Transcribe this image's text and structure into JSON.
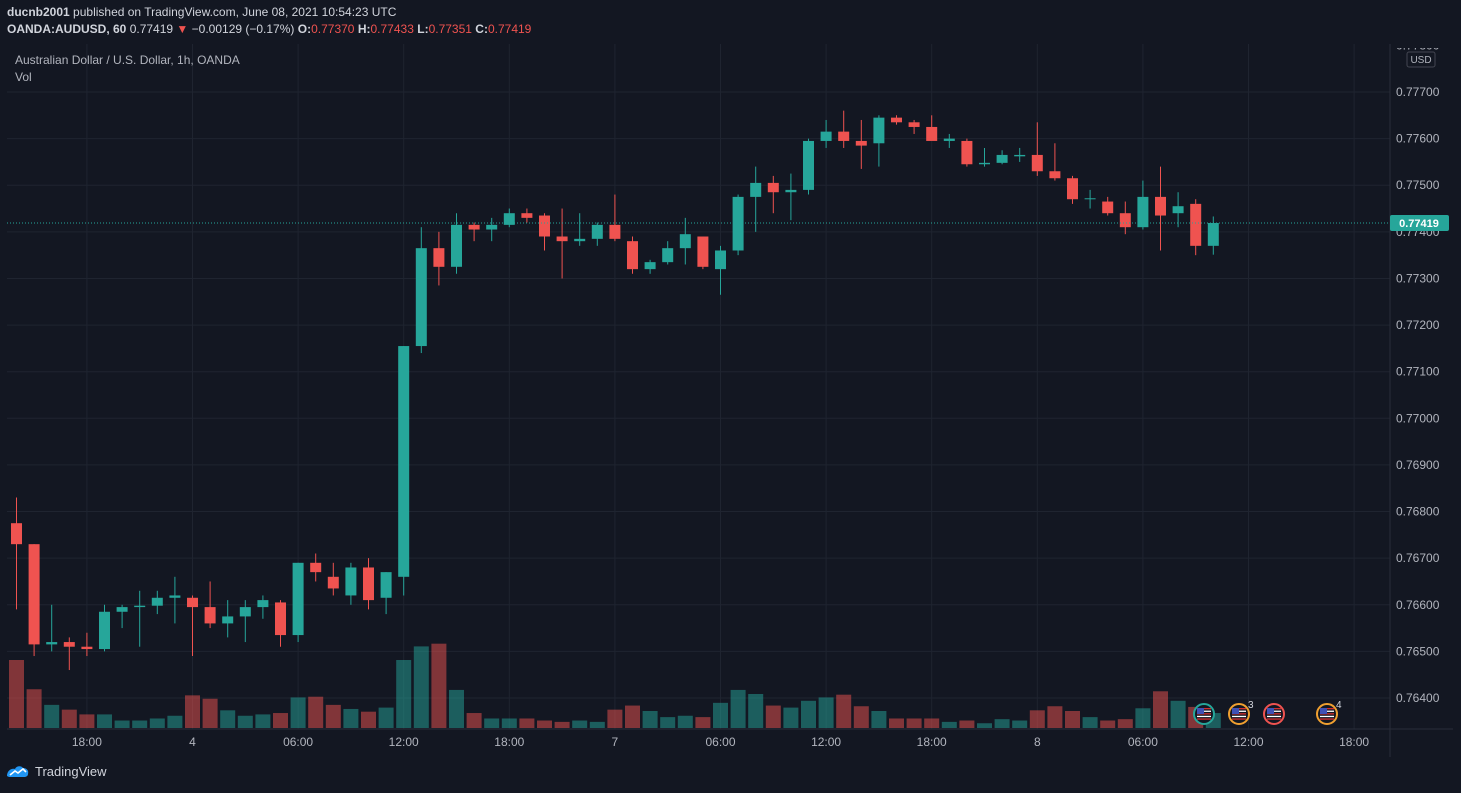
{
  "header": {
    "author": "ducnb2001",
    "published": "published on TradingView.com, June 08, 2021 10:54:23 UTC",
    "symbol": "OANDA:AUDUSD, 60",
    "last": "0.77419",
    "arrow": "▼",
    "change": "−0.00129 (−0.17%)",
    "o_label": "O:",
    "o_val": "0.77370",
    "h_label": "H:",
    "h_val": "0.77433",
    "l_label": "L:",
    "l_val": "0.77351",
    "c_label": "C:",
    "c_val": "0.77419"
  },
  "legend": {
    "title": "Australian Dollar / U.S. Dollar, 1h, OANDA",
    "vol": "Vol"
  },
  "price_axis": {
    "currency": "USD",
    "ticks": [
      "0.77700",
      "0.77600",
      "0.77500",
      "0.77400",
      "0.77300",
      "0.77200",
      "0.77100",
      "0.77000",
      "0.76900",
      "0.76800",
      "0.76700",
      "0.76600",
      "0.76500",
      "0.76400"
    ],
    "top_partial": "0.77800",
    "current_label": "0.77419"
  },
  "time_axis": {
    "ticks": [
      "18:00",
      "4",
      "06:00",
      "12:00",
      "18:00",
      "7",
      "06:00",
      "12:00",
      "18:00",
      "8",
      "06:00",
      "12:00",
      "18:00"
    ]
  },
  "events": [
    {
      "icon": "us-flag-icon",
      "count": ""
    },
    {
      "icon": "us-flag-icon",
      "count": "3"
    },
    {
      "icon": "us-flag-icon",
      "count": ""
    },
    {
      "icon": "us-flag-icon",
      "count": "4"
    }
  ],
  "colors": {
    "up": "#26a69a",
    "down": "#ef5350",
    "background": "#131722",
    "grid": "#1f2430",
    "text": "#b2b5be"
  },
  "footer": {
    "brand": "TradingView"
  },
  "chart_data": {
    "type": "candlestick",
    "symbol": "OANDA:AUDUSD",
    "interval": "1h",
    "ylim": [
      0.7632,
      0.7781
    ],
    "x_tick_labels": [
      "18:00",
      "4",
      "06:00",
      "12:00",
      "18:00",
      "7",
      "06:00",
      "12:00",
      "18:00",
      "8",
      "06:00",
      "12:00",
      "18:00"
    ],
    "last_close": 0.77419,
    "candles": [
      {
        "o": 0.76775,
        "h": 0.7683,
        "l": 0.7659,
        "c": 0.7673
      },
      {
        "o": 0.7673,
        "h": 0.7673,
        "l": 0.7649,
        "c": 0.76515
      },
      {
        "o": 0.76515,
        "h": 0.766,
        "l": 0.765,
        "c": 0.7652
      },
      {
        "o": 0.7652,
        "h": 0.7653,
        "l": 0.7646,
        "c": 0.7651
      },
      {
        "o": 0.7651,
        "h": 0.7654,
        "l": 0.7649,
        "c": 0.76505
      },
      {
        "o": 0.76505,
        "h": 0.766,
        "l": 0.765,
        "c": 0.76585
      },
      {
        "o": 0.76585,
        "h": 0.766,
        "l": 0.7655,
        "c": 0.76595
      },
      {
        "o": 0.76595,
        "h": 0.7663,
        "l": 0.7651,
        "c": 0.76598
      },
      {
        "o": 0.76598,
        "h": 0.7663,
        "l": 0.7658,
        "c": 0.76615
      },
      {
        "o": 0.76615,
        "h": 0.7666,
        "l": 0.7656,
        "c": 0.7662
      },
      {
        "o": 0.76615,
        "h": 0.7662,
        "l": 0.7649,
        "c": 0.76595
      },
      {
        "o": 0.76595,
        "h": 0.7665,
        "l": 0.7655,
        "c": 0.7656
      },
      {
        "o": 0.7656,
        "h": 0.7661,
        "l": 0.7653,
        "c": 0.76575
      },
      {
        "o": 0.76575,
        "h": 0.7661,
        "l": 0.7652,
        "c": 0.76595
      },
      {
        "o": 0.76595,
        "h": 0.7662,
        "l": 0.7657,
        "c": 0.7661
      },
      {
        "o": 0.76605,
        "h": 0.7661,
        "l": 0.7651,
        "c": 0.76535
      },
      {
        "o": 0.76535,
        "h": 0.7669,
        "l": 0.7652,
        "c": 0.7669
      },
      {
        "o": 0.7669,
        "h": 0.7671,
        "l": 0.7665,
        "c": 0.7667
      },
      {
        "o": 0.7666,
        "h": 0.7669,
        "l": 0.7662,
        "c": 0.76635
      },
      {
        "o": 0.7662,
        "h": 0.7669,
        "l": 0.766,
        "c": 0.7668
      },
      {
        "o": 0.7668,
        "h": 0.767,
        "l": 0.7659,
        "c": 0.7661
      },
      {
        "o": 0.76615,
        "h": 0.7667,
        "l": 0.7658,
        "c": 0.7667
      },
      {
        "o": 0.7666,
        "h": 0.77155,
        "l": 0.7662,
        "c": 0.77155
      },
      {
        "o": 0.77155,
        "h": 0.7741,
        "l": 0.7714,
        "c": 0.77365
      },
      {
        "o": 0.77365,
        "h": 0.774,
        "l": 0.77285,
        "c": 0.77325
      },
      {
        "o": 0.77325,
        "h": 0.7744,
        "l": 0.7731,
        "c": 0.77415
      },
      {
        "o": 0.77415,
        "h": 0.7742,
        "l": 0.7738,
        "c": 0.77405
      },
      {
        "o": 0.77405,
        "h": 0.7743,
        "l": 0.7738,
        "c": 0.77415
      },
      {
        "o": 0.77415,
        "h": 0.7745,
        "l": 0.7741,
        "c": 0.7744
      },
      {
        "o": 0.7744,
        "h": 0.7745,
        "l": 0.7742,
        "c": 0.7743
      },
      {
        "o": 0.77435,
        "h": 0.7744,
        "l": 0.7736,
        "c": 0.7739
      },
      {
        "o": 0.7739,
        "h": 0.7745,
        "l": 0.773,
        "c": 0.7738
      },
      {
        "o": 0.7738,
        "h": 0.7744,
        "l": 0.7737,
        "c": 0.77385
      },
      {
        "o": 0.77385,
        "h": 0.7742,
        "l": 0.7737,
        "c": 0.77415
      },
      {
        "o": 0.77415,
        "h": 0.7748,
        "l": 0.7738,
        "c": 0.77385
      },
      {
        "o": 0.7738,
        "h": 0.7739,
        "l": 0.7731,
        "c": 0.7732
      },
      {
        "o": 0.7732,
        "h": 0.7734,
        "l": 0.7731,
        "c": 0.77335
      },
      {
        "o": 0.77335,
        "h": 0.7738,
        "l": 0.7733,
        "c": 0.77365
      },
      {
        "o": 0.77365,
        "h": 0.7743,
        "l": 0.7733,
        "c": 0.77395
      },
      {
        "o": 0.7739,
        "h": 0.7739,
        "l": 0.7732,
        "c": 0.77325
      },
      {
        "o": 0.7732,
        "h": 0.7737,
        "l": 0.77265,
        "c": 0.7736
      },
      {
        "o": 0.7736,
        "h": 0.7748,
        "l": 0.7735,
        "c": 0.77475
      },
      {
        "o": 0.77475,
        "h": 0.7754,
        "l": 0.774,
        "c": 0.77505
      },
      {
        "o": 0.77505,
        "h": 0.7752,
        "l": 0.7744,
        "c": 0.77485
      },
      {
        "o": 0.77485,
        "h": 0.77525,
        "l": 0.77425,
        "c": 0.7749
      },
      {
        "o": 0.7749,
        "h": 0.776,
        "l": 0.7748,
        "c": 0.77595
      },
      {
        "o": 0.77595,
        "h": 0.7764,
        "l": 0.7758,
        "c": 0.77615
      },
      {
        "o": 0.77615,
        "h": 0.7766,
        "l": 0.7758,
        "c": 0.77595
      },
      {
        "o": 0.77595,
        "h": 0.7764,
        "l": 0.77535,
        "c": 0.77585
      },
      {
        "o": 0.7759,
        "h": 0.7765,
        "l": 0.7754,
        "c": 0.77645
      },
      {
        "o": 0.77645,
        "h": 0.7765,
        "l": 0.7763,
        "c": 0.77635
      },
      {
        "o": 0.77635,
        "h": 0.7764,
        "l": 0.7761,
        "c": 0.77625
      },
      {
        "o": 0.77625,
        "h": 0.7765,
        "l": 0.776,
        "c": 0.77595
      },
      {
        "o": 0.77595,
        "h": 0.7761,
        "l": 0.7758,
        "c": 0.776
      },
      {
        "o": 0.77595,
        "h": 0.776,
        "l": 0.7754,
        "c": 0.77545
      },
      {
        "o": 0.77545,
        "h": 0.7758,
        "l": 0.7754,
        "c": 0.77548
      },
      {
        "o": 0.77548,
        "h": 0.77575,
        "l": 0.77545,
        "c": 0.77565
      },
      {
        "o": 0.77562,
        "h": 0.7758,
        "l": 0.7755,
        "c": 0.77565
      },
      {
        "o": 0.77565,
        "h": 0.77635,
        "l": 0.7752,
        "c": 0.7753
      },
      {
        "o": 0.7753,
        "h": 0.7759,
        "l": 0.7751,
        "c": 0.77515
      },
      {
        "o": 0.77515,
        "h": 0.7752,
        "l": 0.7746,
        "c": 0.7747
      },
      {
        "o": 0.7747,
        "h": 0.7749,
        "l": 0.7745,
        "c": 0.77472
      },
      {
        "o": 0.77465,
        "h": 0.77475,
        "l": 0.77435,
        "c": 0.7744
      },
      {
        "o": 0.7744,
        "h": 0.77465,
        "l": 0.77395,
        "c": 0.7741
      },
      {
        "o": 0.7741,
        "h": 0.7751,
        "l": 0.77405,
        "c": 0.77475
      },
      {
        "o": 0.77475,
        "h": 0.7754,
        "l": 0.7736,
        "c": 0.77435
      },
      {
        "o": 0.7744,
        "h": 0.77485,
        "l": 0.7741,
        "c": 0.77455
      },
      {
        "o": 0.7746,
        "h": 0.7747,
        "l": 0.7735,
        "c": 0.7737
      },
      {
        "o": 0.7737,
        "h": 0.77433,
        "l": 0.77351,
        "c": 0.77419
      }
    ],
    "volume": [
      1.0,
      0.57,
      0.34,
      0.27,
      0.2,
      0.2,
      0.11,
      0.11,
      0.14,
      0.18,
      0.48,
      0.43,
      0.26,
      0.18,
      0.2,
      0.22,
      0.45,
      0.46,
      0.34,
      0.28,
      0.24,
      0.3,
      1.0,
      1.2,
      1.24,
      0.56,
      0.22,
      0.14,
      0.14,
      0.14,
      0.11,
      0.09,
      0.11,
      0.09,
      0.27,
      0.33,
      0.25,
      0.16,
      0.18,
      0.16,
      0.37,
      0.56,
      0.5,
      0.33,
      0.3,
      0.4,
      0.45,
      0.49,
      0.32,
      0.25,
      0.14,
      0.14,
      0.14,
      0.09,
      0.11,
      0.07,
      0.13,
      0.11,
      0.26,
      0.32,
      0.25,
      0.16,
      0.11,
      0.13,
      0.29,
      0.54,
      0.4,
      0.31,
      0.22
    ]
  }
}
